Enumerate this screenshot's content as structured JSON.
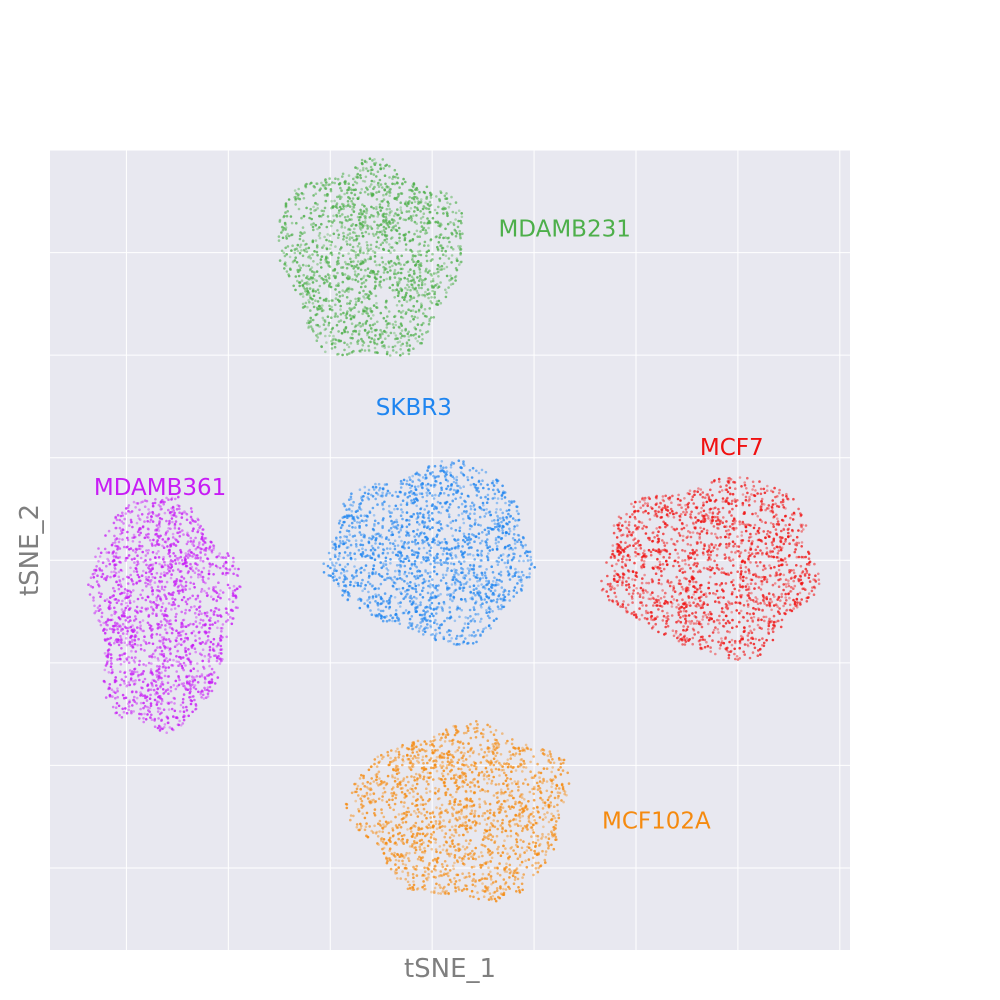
{
  "chart_data": {
    "type": "scatter",
    "title": "",
    "xlabel": "tSNE_1",
    "ylabel": "tSNE_2",
    "xlim": [
      -37.5,
      41
    ],
    "ylim": [
      -38,
      40
    ],
    "grid": true,
    "tick_labels_shown": false,
    "x_gridlines": [
      -30,
      -20,
      -10,
      0,
      10,
      20,
      30,
      40
    ],
    "y_gridlines": [
      -30,
      -20,
      -10,
      0,
      10,
      20,
      30,
      40
    ],
    "background": "#e8e8f0",
    "clusters": [
      {
        "name": "MDAMB231",
        "color": "#4daf4a",
        "center": [
          -6,
          29.5
        ],
        "half_width": 9,
        "half_height": 9.5,
        "points": 1700
      },
      {
        "name": "SKBR3",
        "color": "#1f85f0",
        "center": [
          0,
          0.8
        ],
        "half_width": 10,
        "half_height": 8.5,
        "points": 1700
      },
      {
        "name": "MCF7",
        "color": "#f01010",
        "center": [
          27.5,
          -0.5
        ],
        "half_width": 10.5,
        "half_height": 8.5,
        "points": 1700
      },
      {
        "name": "MDAMB361",
        "color": "#c71cf5",
        "center": [
          -26.5,
          -5
        ],
        "half_width": 7,
        "half_height": 11.5,
        "points": 1700
      },
      {
        "name": "MCF102A",
        "color": "#f58a0f",
        "center": [
          3,
          -24.5
        ],
        "half_width": 10.5,
        "half_height": 8.5,
        "points": 1700
      }
    ],
    "annotations": [
      {
        "text": "MDAMB231",
        "x": 13,
        "y": 32.2,
        "color": "#4daf4a"
      },
      {
        "text": "SKBR3",
        "x": -1.8,
        "y": 14.8,
        "color": "#1f85f0"
      },
      {
        "text": "MCF7",
        "x": 29.4,
        "y": 10.9,
        "color": "#f01010"
      },
      {
        "text": "MDAMB361",
        "x": -26.7,
        "y": 7.0,
        "color": "#c71cf5"
      },
      {
        "text": "MCF102A",
        "x": 22,
        "y": -25.5,
        "color": "#f58a0f"
      }
    ]
  }
}
